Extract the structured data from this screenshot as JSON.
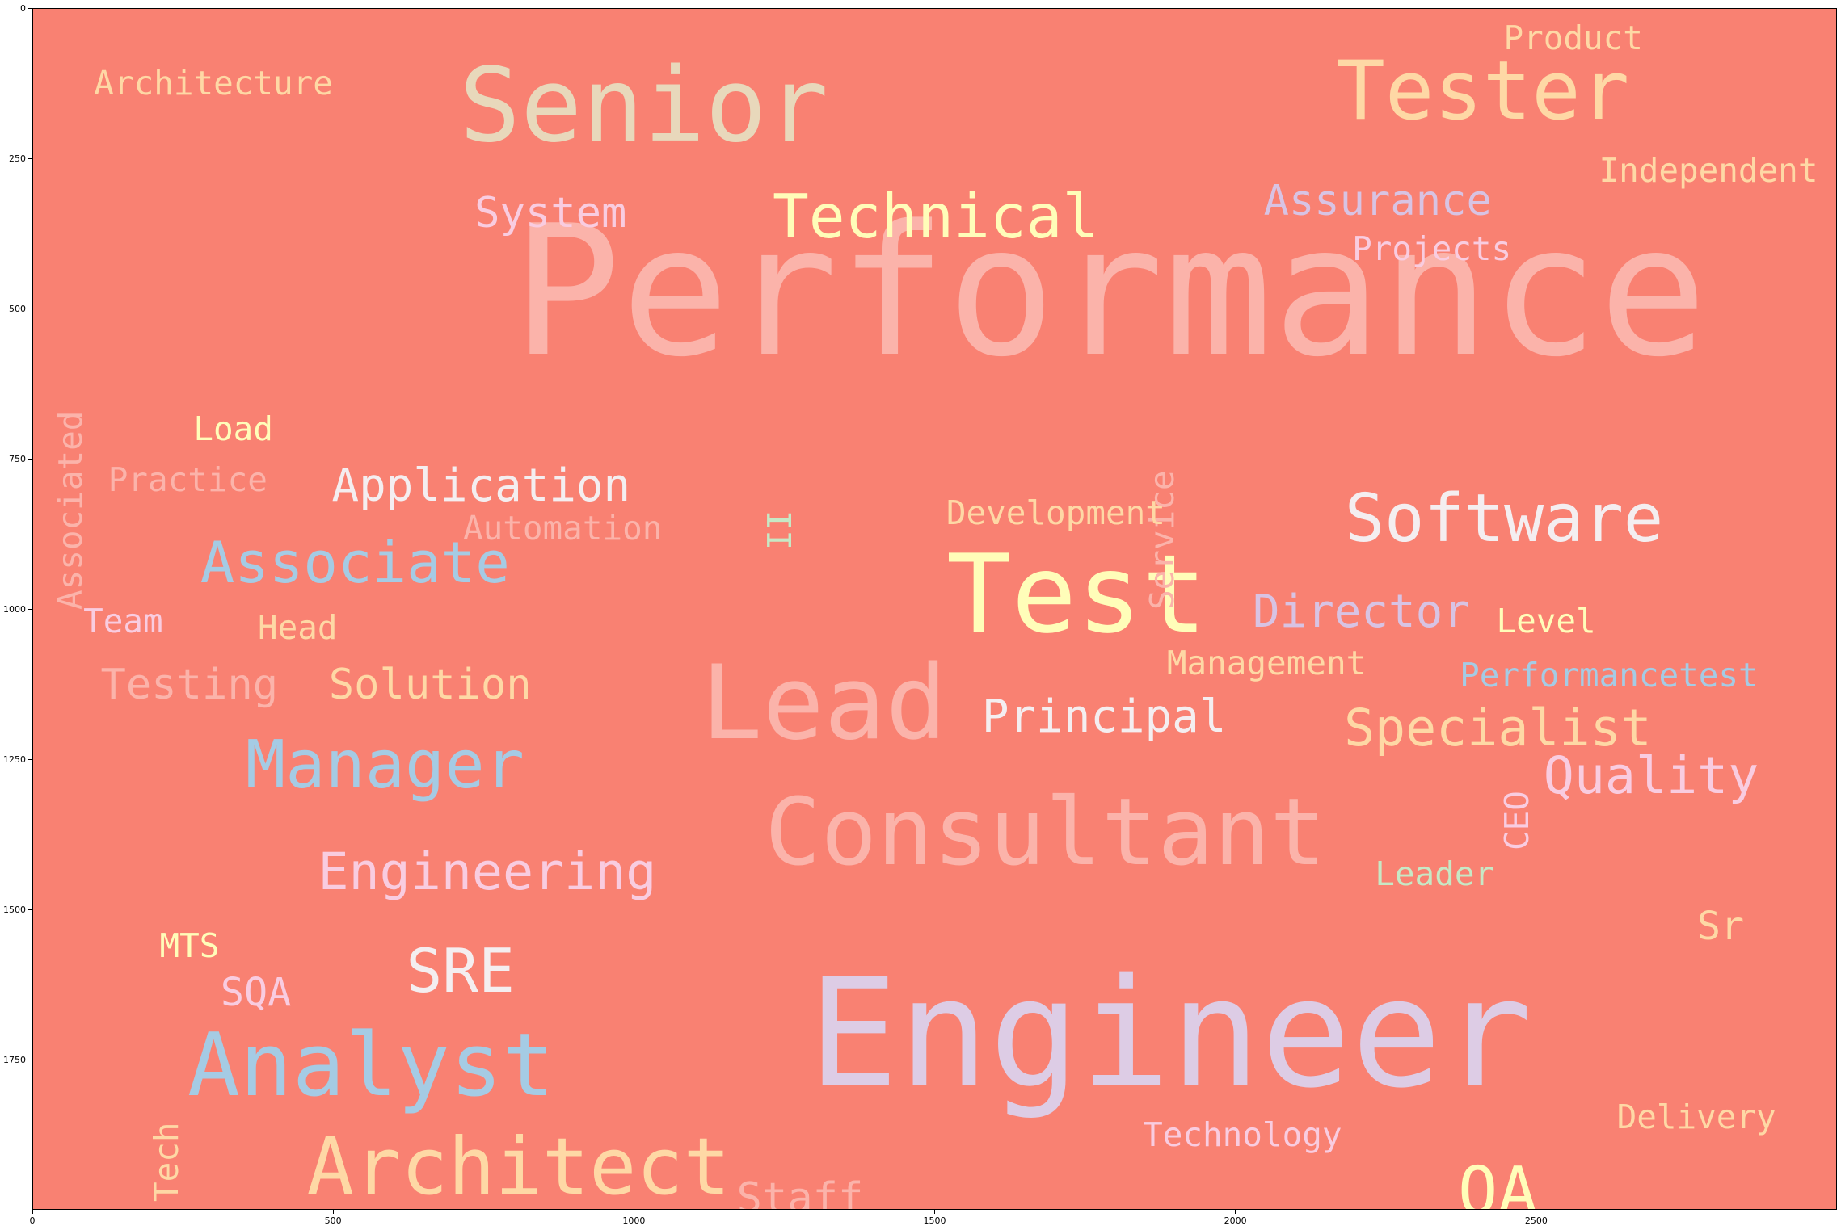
{
  "chart_data": {
    "type": "wordcloud",
    "xlim": [
      0,
      3000
    ],
    "ylim": [
      2000,
      0
    ],
    "x_ticks": [
      0,
      500,
      1000,
      1500,
      2000,
      2500
    ],
    "y_ticks": [
      0,
      250,
      500,
      750,
      1000,
      1250,
      1500,
      1750
    ],
    "background": "#f98172",
    "words": [
      {
        "text": "Performance",
        "x": 1790,
        "y": 555,
        "size": 300,
        "color": "#fbb3aa",
        "vertical": false
      },
      {
        "text": "Engineer",
        "x": 1890,
        "y": 1775,
        "size": 250,
        "color": "#ddcce5",
        "vertical": false
      },
      {
        "text": "Test",
        "x": 1735,
        "y": 1025,
        "size": 180,
        "color": "#fffdb9",
        "vertical": false
      },
      {
        "text": "Senior",
        "x": 1015,
        "y": 210,
        "size": 170,
        "color": "#e8d8bb",
        "vertical": false
      },
      {
        "text": "Lead",
        "x": 1315,
        "y": 1205,
        "size": 170,
        "color": "#fbb3aa",
        "vertical": false
      },
      {
        "text": "Consultant",
        "x": 1683,
        "y": 1415,
        "size": 155,
        "color": "#fbb3aa",
        "vertical": false
      },
      {
        "text": "Analyst",
        "x": 562,
        "y": 1800,
        "size": 145,
        "color": "#a5cbe4",
        "vertical": false
      },
      {
        "text": "Tester",
        "x": 2410,
        "y": 175,
        "size": 135,
        "color": "#fed8a5",
        "vertical": false
      },
      {
        "text": "Architect",
        "x": 807,
        "y": 1965,
        "size": 130,
        "color": "#fed8a5",
        "vertical": false
      },
      {
        "text": "Manager",
        "x": 585,
        "y": 1290,
        "size": 110,
        "color": "#a5cbe4",
        "vertical": false
      },
      {
        "text": "Software",
        "x": 2445,
        "y": 880,
        "size": 110,
        "color": "#f4eef0",
        "vertical": false
      },
      {
        "text": "QA",
        "x": 2435,
        "y": 2000,
        "size": 110,
        "color": "#fffdb9",
        "vertical": false
      },
      {
        "text": "Technical",
        "x": 1500,
        "y": 375,
        "size": 100,
        "color": "#fffdb9",
        "vertical": false
      },
      {
        "text": "SRE",
        "x": 710,
        "y": 1630,
        "size": 100,
        "color": "#f4eef0",
        "vertical": false
      },
      {
        "text": "Associate",
        "x": 535,
        "y": 950,
        "size": 95,
        "color": "#a5cbe4",
        "vertical": false
      },
      {
        "text": "Engineering",
        "x": 755,
        "y": 1460,
        "size": 85,
        "color": "#f9cce0",
        "vertical": false
      },
      {
        "text": "Specialist",
        "x": 2435,
        "y": 1220,
        "size": 85,
        "color": "#fed8a5",
        "vertical": false
      },
      {
        "text": "Quality",
        "x": 2690,
        "y": 1300,
        "size": 85,
        "color": "#f9cce0",
        "vertical": false
      },
      {
        "text": "Application",
        "x": 745,
        "y": 815,
        "size": 75,
        "color": "#f4eef0",
        "vertical": false
      },
      {
        "text": "Principal",
        "x": 1780,
        "y": 1200,
        "size": 75,
        "color": "#f4eef0",
        "vertical": false
      },
      {
        "text": "Director",
        "x": 2208,
        "y": 1025,
        "size": 75,
        "color": "#d8c3e3",
        "vertical": false
      },
      {
        "text": "Assurance",
        "x": 2235,
        "y": 340,
        "size": 70,
        "color": "#d8c3e3",
        "vertical": false
      },
      {
        "text": "Testing",
        "x": 260,
        "y": 1145,
        "size": 70,
        "color": "#fbb3aa",
        "vertical": false
      },
      {
        "text": "Solution",
        "x": 660,
        "y": 1145,
        "size": 70,
        "color": "#fed8a5",
        "vertical": false
      },
      {
        "text": "System",
        "x": 860,
        "y": 360,
        "size": 70,
        "color": "#f9cce0",
        "vertical": false
      },
      {
        "text": "Staff",
        "x": 1275,
        "y": 2000,
        "size": 70,
        "color": "#fbb3aa",
        "vertical": false
      },
      {
        "text": "Associated",
        "x": 35,
        "y": 1000,
        "size": 55,
        "color": "#fbb3aa",
        "vertical": true
      },
      {
        "text": "Service",
        "x": 1850,
        "y": 1000,
        "size": 55,
        "color": "#fbb3aa",
        "vertical": true
      },
      {
        "text": "SQA",
        "x": 370,
        "y": 1655,
        "size": 65,
        "color": "#f9cce0",
        "vertical": false
      },
      {
        "text": "Sr",
        "x": 2805,
        "y": 1545,
        "size": 65,
        "color": "#fed8a5",
        "vertical": false
      },
      {
        "text": "Independent",
        "x": 2785,
        "y": 285,
        "size": 55,
        "color": "#fed8a5",
        "vertical": false
      },
      {
        "text": "Architecture",
        "x": 300,
        "y": 140,
        "size": 55,
        "color": "#fed8a5",
        "vertical": false
      },
      {
        "text": "Performancetest",
        "x": 2620,
        "y": 1125,
        "size": 55,
        "color": "#a5cbe4",
        "vertical": false
      },
      {
        "text": "Practice",
        "x": 257,
        "y": 800,
        "size": 55,
        "color": "#fbb3aa",
        "vertical": false
      },
      {
        "text": "Automation",
        "x": 880,
        "y": 880,
        "size": 55,
        "color": "#fbb3aa",
        "vertical": false
      },
      {
        "text": "Development",
        "x": 1700,
        "y": 855,
        "size": 55,
        "color": "#fed8a5",
        "vertical": false
      },
      {
        "text": "Management",
        "x": 2050,
        "y": 1105,
        "size": 55,
        "color": "#fed8a5",
        "vertical": false
      },
      {
        "text": "Technology",
        "x": 2010,
        "y": 1890,
        "size": 55,
        "color": "#f9cce0",
        "vertical": false
      },
      {
        "text": "Delivery",
        "x": 2765,
        "y": 1860,
        "size": 55,
        "color": "#fed8a5",
        "vertical": false
      },
      {
        "text": "Leader",
        "x": 2330,
        "y": 1455,
        "size": 55,
        "color": "#c7e8c5",
        "vertical": false
      },
      {
        "text": "Projects",
        "x": 2325,
        "y": 415,
        "size": 55,
        "color": "#f9cce0",
        "vertical": false
      },
      {
        "text": "Product",
        "x": 2560,
        "y": 65,
        "size": 55,
        "color": "#fed8a5",
        "vertical": false
      },
      {
        "text": "Load",
        "x": 333,
        "y": 715,
        "size": 55,
        "color": "#fffdb9",
        "vertical": false
      },
      {
        "text": "Head",
        "x": 440,
        "y": 1045,
        "size": 55,
        "color": "#fed8a5",
        "vertical": false
      },
      {
        "text": "Team",
        "x": 150,
        "y": 1035,
        "size": 55,
        "color": "#f9cce0",
        "vertical": false
      },
      {
        "text": "Level",
        "x": 2515,
        "y": 1035,
        "size": 55,
        "color": "#fffdb9",
        "vertical": false
      },
      {
        "text": "MTS",
        "x": 260,
        "y": 1575,
        "size": 55,
        "color": "#fffdb9",
        "vertical": false
      },
      {
        "text": "Tech",
        "x": 195,
        "y": 1985,
        "size": 55,
        "color": "#fed8a5",
        "vertical": true
      },
      {
        "text": "II",
        "x": 1215,
        "y": 900,
        "size": 55,
        "color": "#c7e8c5",
        "vertical": true
      },
      {
        "text": "CEO",
        "x": 2440,
        "y": 1400,
        "size": 55,
        "color": "#f9cce0",
        "vertical": true
      }
    ]
  }
}
